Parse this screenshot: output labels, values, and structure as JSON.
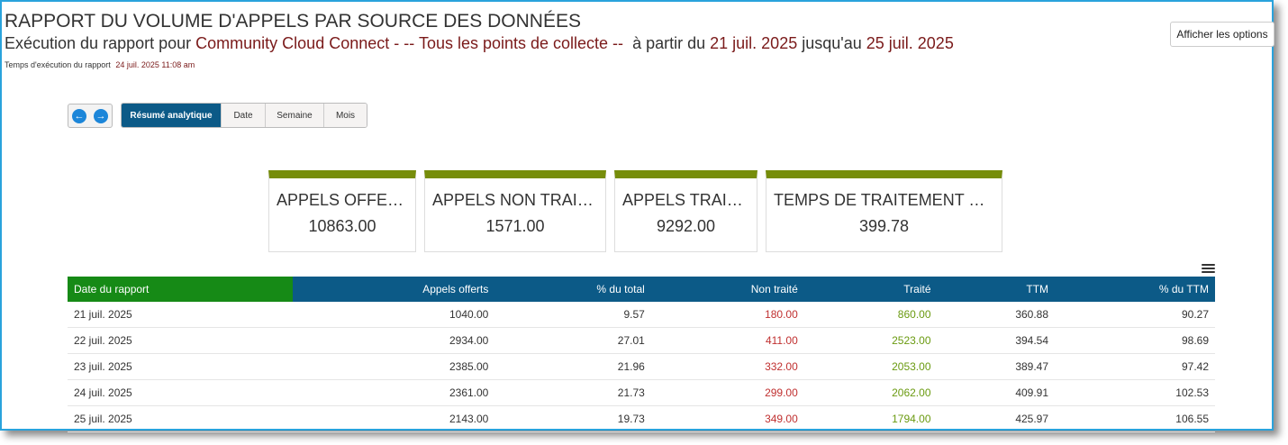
{
  "header": {
    "title": "RAPPORT DU VOLUME D'APPELS PAR SOURCE DES DONNÉES",
    "subtitle_prefix": "Exécution du rapport pour",
    "source": "Community Cloud Connect",
    "points": " - -- Tous les points de collecte --",
    "from_text": "à partir du",
    "start_date": "21 juil. 2025",
    "to_text": "jusqu'au",
    "end_date": "25 juil. 2025",
    "runtime_label": "Temps d'exécution du rapport",
    "runtime_value": "24 juil. 2025 11:08 am"
  },
  "options_button": "Afficher les options",
  "tabs": [
    "Résumé analytique",
    "Date",
    "Semaine",
    "Mois"
  ],
  "cards": [
    {
      "label": "APPELS OFFERTS",
      "value": "10863.00"
    },
    {
      "label": "APPELS NON TRAITÉS",
      "value": "1571.00"
    },
    {
      "label": "APPELS TRAITÉS",
      "value": "9292.00"
    },
    {
      "label": "TEMPS DE TRAITEMENT MO...",
      "value": "399.78"
    }
  ],
  "table": {
    "headers": [
      "Date du rapport",
      "Appels offerts",
      "% du total",
      "Non traité",
      "Traité",
      "TTM",
      "% du TTM"
    ],
    "rows": [
      [
        "21 juil. 2025",
        "1040.00",
        "9.57",
        "180.00",
        "860.00",
        "360.88",
        "90.27"
      ],
      [
        "22 juil. 2025",
        "2934.00",
        "27.01",
        "411.00",
        "2523.00",
        "394.54",
        "98.69"
      ],
      [
        "23 juil. 2025",
        "2385.00",
        "21.96",
        "332.00",
        "2053.00",
        "389.47",
        "97.42"
      ],
      [
        "24 juil. 2025",
        "2361.00",
        "21.73",
        "299.00",
        "2062.00",
        "409.91",
        "102.53"
      ],
      [
        "25 juil. 2025",
        "2143.00",
        "19.73",
        "349.00",
        "1794.00",
        "425.97",
        "106.55"
      ]
    ]
  },
  "colors": {
    "accent_blue": "#0c5a87",
    "date_header_green": "#168a16",
    "card_bar": "#768d0a",
    "highlight_red": "#7a1a1a"
  },
  "icons": {
    "prev": "arrow-left-circle-icon",
    "next": "arrow-right-circle-icon",
    "menu": "hamburger-menu-icon"
  }
}
